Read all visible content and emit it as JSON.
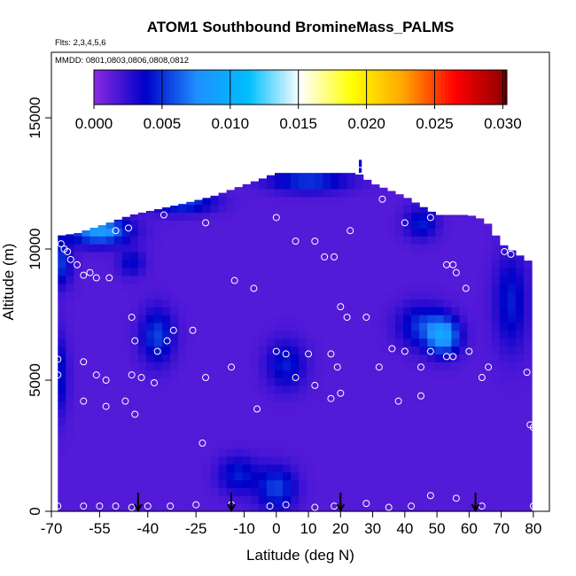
{
  "chart_data": {
    "type": "heatmap",
    "title": "ATOM1 Southbound BromineMass_PALMS",
    "subtitle_flights": "Flts: 2,3,4,5,6",
    "subtitle_dates": "MMDD: 0801,0803,0806,0808,0812",
    "xlabel": "Latitude (deg N)",
    "ylabel": "Altitude (m)",
    "xlim": [
      -70,
      85
    ],
    "ylim": [
      0,
      17500
    ],
    "x_ticks": [
      -70,
      -55,
      -40,
      -25,
      -10,
      0,
      10,
      20,
      30,
      40,
      50,
      60,
      70,
      80
    ],
    "y_ticks": [
      0,
      5000,
      10000,
      15000
    ],
    "colorbar": {
      "min": 0.0,
      "max": 0.0303,
      "tick_values": [
        0.0,
        0.005,
        0.01,
        0.015,
        0.02,
        0.025,
        0.03
      ],
      "tick_labels": [
        "0.000",
        "0.005",
        "0.010",
        "0.015",
        "0.020",
        "0.025",
        "0.030"
      ],
      "colors": [
        "#8a2be2",
        "#0000c8",
        "#1e90ff",
        "#00bfff",
        "#ffffff",
        "#ffff00",
        "#ffa500",
        "#ff0000",
        "#8b0000"
      ]
    },
    "background_value": 0.0015,
    "enhancements": [
      {
        "lat": -55,
        "alt": 10700,
        "value": 0.0085,
        "sx": 9,
        "sy": 500
      },
      {
        "lat": -30,
        "alt": 11800,
        "value": 0.006,
        "sx": 10,
        "sy": 400
      },
      {
        "lat": 10,
        "alt": 12600,
        "value": 0.0055,
        "sx": 12,
        "sy": 400
      },
      {
        "lat": -68,
        "alt": 9500,
        "value": 0.0055,
        "sx": 4,
        "sy": 900
      },
      {
        "lat": 52,
        "alt": 6700,
        "value": 0.0085,
        "sx": 5,
        "sy": 700
      },
      {
        "lat": 45,
        "alt": 7100,
        "value": 0.005,
        "sx": 7,
        "sy": 800
      },
      {
        "lat": -37,
        "alt": 6700,
        "value": 0.0055,
        "sx": 5,
        "sy": 1000
      },
      {
        "lat": 3,
        "alt": 5600,
        "value": 0.0045,
        "sx": 6,
        "sy": 900
      },
      {
        "lat": -68,
        "alt": 5200,
        "value": 0.0045,
        "sx": 3,
        "sy": 1500
      },
      {
        "lat": 0,
        "alt": 900,
        "value": 0.0055,
        "sx": 6,
        "sy": 800
      },
      {
        "lat": -12,
        "alt": 1400,
        "value": 0.0045,
        "sx": 6,
        "sy": 700
      },
      {
        "lat": 73,
        "alt": 8000,
        "value": 0.0045,
        "sx": 5,
        "sy": 1800
      },
      {
        "lat": 45,
        "alt": 11000,
        "value": 0.0045,
        "sx": 5,
        "sy": 600
      },
      {
        "lat": -45,
        "alt": 9500,
        "value": 0.004,
        "sx": 4,
        "sy": 500
      }
    ],
    "observations": [
      {
        "lat": -67,
        "alt": 10200
      },
      {
        "lat": -66,
        "alt": 10000
      },
      {
        "lat": -65,
        "alt": 9900
      },
      {
        "lat": -64,
        "alt": 9600
      },
      {
        "lat": -62,
        "alt": 9400
      },
      {
        "lat": -60,
        "alt": 9000
      },
      {
        "lat": -58,
        "alt": 9100
      },
      {
        "lat": -56,
        "alt": 8900
      },
      {
        "lat": -52,
        "alt": 8900
      },
      {
        "lat": -50,
        "alt": 10700
      },
      {
        "lat": -46,
        "alt": 10800
      },
      {
        "lat": -41,
        "alt": 11600
      },
      {
        "lat": -35,
        "alt": 11300
      },
      {
        "lat": -22,
        "alt": 11000
      },
      {
        "lat": -13,
        "alt": 8800
      },
      {
        "lat": -7,
        "alt": 8500
      },
      {
        "lat": 0,
        "alt": 11200
      },
      {
        "lat": 6,
        "alt": 10300
      },
      {
        "lat": 12,
        "alt": 10300
      },
      {
        "lat": 15,
        "alt": 9700
      },
      {
        "lat": 18,
        "alt": 9700
      },
      {
        "lat": 23,
        "alt": 10700
      },
      {
        "lat": 26,
        "alt": 13000
      },
      {
        "lat": 33,
        "alt": 11900
      },
      {
        "lat": 40,
        "alt": 11000
      },
      {
        "lat": 48,
        "alt": 11200
      },
      {
        "lat": 53,
        "alt": 9400
      },
      {
        "lat": 55,
        "alt": 9400
      },
      {
        "lat": 56,
        "alt": 9100
      },
      {
        "lat": 59,
        "alt": 8500
      },
      {
        "lat": 64,
        "alt": 11300
      },
      {
        "lat": 71,
        "alt": 9900
      },
      {
        "lat": 73,
        "alt": 9800
      },
      {
        "lat": -68,
        "alt": 5800
      },
      {
        "lat": -68,
        "alt": 5200
      },
      {
        "lat": -60,
        "alt": 5700
      },
      {
        "lat": -56,
        "alt": 5200
      },
      {
        "lat": -53,
        "alt": 5000
      },
      {
        "lat": -45,
        "alt": 7400
      },
      {
        "lat": -44,
        "alt": 6500
      },
      {
        "lat": -45,
        "alt": 5200
      },
      {
        "lat": -42,
        "alt": 5100
      },
      {
        "lat": -37,
        "alt": 6100
      },
      {
        "lat": -34,
        "alt": 6500
      },
      {
        "lat": -32,
        "alt": 6900
      },
      {
        "lat": -26,
        "alt": 6900
      },
      {
        "lat": -22,
        "alt": 5100
      },
      {
        "lat": -14,
        "alt": 5500
      },
      {
        "lat": 0,
        "alt": 6100
      },
      {
        "lat": 3,
        "alt": 6000
      },
      {
        "lat": 6,
        "alt": 5100
      },
      {
        "lat": 10,
        "alt": 6000
      },
      {
        "lat": 12,
        "alt": 4800
      },
      {
        "lat": 17,
        "alt": 6000
      },
      {
        "lat": 19,
        "alt": 5500
      },
      {
        "lat": 20,
        "alt": 7800
      },
      {
        "lat": 22,
        "alt": 7400
      },
      {
        "lat": 28,
        "alt": 7400
      },
      {
        "lat": 32,
        "alt": 5500
      },
      {
        "lat": 36,
        "alt": 6200
      },
      {
        "lat": 40,
        "alt": 6100
      },
      {
        "lat": 45,
        "alt": 5500
      },
      {
        "lat": 48,
        "alt": 6100
      },
      {
        "lat": 53,
        "alt": 5900
      },
      {
        "lat": 55,
        "alt": 5900
      },
      {
        "lat": 60,
        "alt": 6100
      },
      {
        "lat": 64,
        "alt": 5100
      },
      {
        "lat": 66,
        "alt": 5500
      },
      {
        "lat": 78,
        "alt": 5300
      },
      {
        "lat": -60,
        "alt": 4200
      },
      {
        "lat": -53,
        "alt": 4000
      },
      {
        "lat": -47,
        "alt": 4200
      },
      {
        "lat": -44,
        "alt": 3700
      },
      {
        "lat": -38,
        "alt": 4900
      },
      {
        "lat": -23,
        "alt": 2600
      },
      {
        "lat": -6,
        "alt": 3900
      },
      {
        "lat": 17,
        "alt": 4300
      },
      {
        "lat": 20,
        "alt": 4500
      },
      {
        "lat": 38,
        "alt": 4200
      },
      {
        "lat": 45,
        "alt": 4400
      },
      {
        "lat": 79,
        "alt": 3300
      },
      {
        "lat": 80,
        "alt": 3200
      },
      {
        "lat": -68,
        "alt": 200
      },
      {
        "lat": -60,
        "alt": 200
      },
      {
        "lat": -55,
        "alt": 200
      },
      {
        "lat": -50,
        "alt": 200
      },
      {
        "lat": -45,
        "alt": 150
      },
      {
        "lat": -40,
        "alt": 200
      },
      {
        "lat": -33,
        "alt": 200
      },
      {
        "lat": -25,
        "alt": 250
      },
      {
        "lat": -14,
        "alt": 250
      },
      {
        "lat": -2,
        "alt": 200
      },
      {
        "lat": 3,
        "alt": 250
      },
      {
        "lat": 12,
        "alt": 150
      },
      {
        "lat": 18,
        "alt": 200
      },
      {
        "lat": 28,
        "alt": 300
      },
      {
        "lat": 35,
        "alt": 150
      },
      {
        "lat": 42,
        "alt": 200
      },
      {
        "lat": 48,
        "alt": 600
      },
      {
        "lat": 56,
        "alt": 500
      },
      {
        "lat": 64,
        "alt": 200
      },
      {
        "lat": 80,
        "alt": 200
      }
    ],
    "marker_latitudes": [
      -43,
      -14,
      20,
      62
    ]
  }
}
